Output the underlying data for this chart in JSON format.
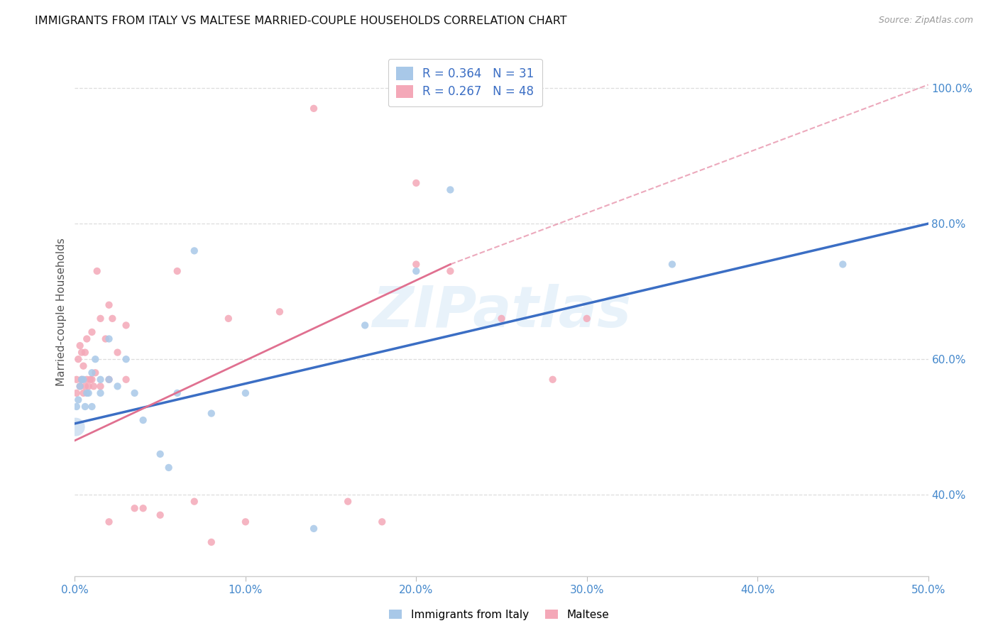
{
  "title": "IMMIGRANTS FROM ITALY VS MALTESE MARRIED-COUPLE HOUSEHOLDS CORRELATION CHART",
  "source": "Source: ZipAtlas.com",
  "ylabel": "Married-couple Households",
  "watermark": "ZIPatlas",
  "xmin": 0.0,
  "xmax": 50.0,
  "ymin": 28.0,
  "ymax": 106.0,
  "yticks": [
    40.0,
    60.0,
    80.0,
    100.0
  ],
  "xticks": [
    0.0,
    10.0,
    20.0,
    30.0,
    40.0,
    50.0
  ],
  "color_italy": "#a8c8e8",
  "color_maltese": "#f4a8b8",
  "color_trend_italy": "#3b6ec4",
  "color_trend_maltese": "#e07090",
  "color_axis_labels": "#4488cc",
  "legend_label_italy": "Immigrants from Italy",
  "legend_label_maltese": "Maltese",
  "R_italy": 0.364,
  "N_italy": 31,
  "R_maltese": 0.267,
  "N_maltese": 48,
  "italy_x": [
    0.1,
    0.2,
    0.3,
    0.4,
    0.5,
    0.6,
    0.7,
    0.8,
    1.0,
    1.0,
    1.2,
    1.5,
    1.5,
    2.0,
    2.0,
    2.5,
    3.0,
    3.5,
    4.0,
    5.0,
    5.5,
    6.0,
    7.0,
    8.0,
    10.0,
    14.0,
    17.0,
    20.0,
    22.0,
    35.0,
    45.0
  ],
  "italy_y": [
    53.0,
    54.0,
    56.0,
    57.0,
    57.0,
    53.0,
    55.0,
    55.0,
    53.0,
    58.0,
    60.0,
    57.0,
    55.0,
    63.0,
    57.0,
    56.0,
    60.0,
    55.0,
    51.0,
    46.0,
    44.0,
    55.0,
    76.0,
    52.0,
    55.0,
    35.0,
    65.0,
    73.0,
    85.0,
    74.0,
    74.0
  ],
  "maltese_x": [
    0.1,
    0.1,
    0.2,
    0.3,
    0.3,
    0.4,
    0.4,
    0.5,
    0.5,
    0.6,
    0.6,
    0.7,
    0.7,
    0.8,
    0.9,
    1.0,
    1.0,
    1.1,
    1.2,
    1.3,
    1.5,
    1.5,
    1.8,
    2.0,
    2.0,
    2.2,
    2.5,
    3.0,
    3.5,
    4.0,
    5.0,
    6.0,
    7.0,
    8.0,
    9.0,
    10.0,
    12.0,
    14.0,
    16.0,
    18.0,
    20.0,
    20.0,
    22.0,
    25.0,
    28.0,
    30.0,
    3.0,
    2.0
  ],
  "maltese_y": [
    55.0,
    57.0,
    60.0,
    56.0,
    62.0,
    57.0,
    61.0,
    55.0,
    59.0,
    56.0,
    61.0,
    57.0,
    63.0,
    56.0,
    57.0,
    57.0,
    64.0,
    56.0,
    58.0,
    73.0,
    56.0,
    66.0,
    63.0,
    68.0,
    57.0,
    66.0,
    61.0,
    57.0,
    38.0,
    38.0,
    37.0,
    73.0,
    39.0,
    33.0,
    66.0,
    36.0,
    67.0,
    97.0,
    39.0,
    36.0,
    86.0,
    74.0,
    73.0,
    66.0,
    57.0,
    66.0,
    65.0,
    36.0
  ],
  "trend_italy_x0": 0.0,
  "trend_italy_y0": 50.5,
  "trend_italy_x1": 50.0,
  "trend_italy_y1": 80.0,
  "trend_maltese_x0": 0.0,
  "trend_maltese_y0": 48.0,
  "trend_maltese_x1": 22.0,
  "trend_maltese_y1": 74.0,
  "trend_maltese_dash_x0": 22.0,
  "trend_maltese_dash_y0": 74.0,
  "trend_maltese_dash_x1": 50.0,
  "trend_maltese_dash_y1": 100.5
}
